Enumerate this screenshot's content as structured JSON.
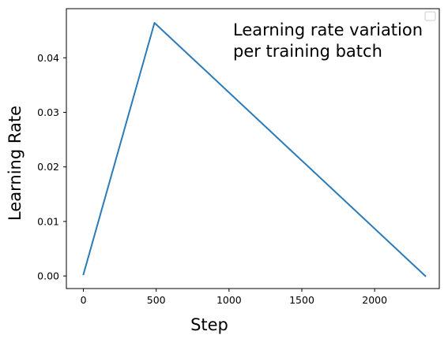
{
  "chart_data": {
    "type": "line",
    "title": "",
    "xlabel": "Step",
    "ylabel": "Learning Rate",
    "annotation": [
      "Learning rate variation",
      "per training batch"
    ],
    "xlim": [
      -117,
      2444
    ],
    "ylim": [
      -0.0023,
      0.049
    ],
    "xticks": [
      0,
      500,
      1000,
      1500,
      2000
    ],
    "yticks": [
      0.0,
      0.01,
      0.02,
      0.03,
      0.04
    ],
    "xtick_labels": [
      "0",
      "500",
      "1000",
      "1500",
      "2000"
    ],
    "ytick_labels": [
      "0.00",
      "0.01",
      "0.02",
      "0.03",
      "0.04"
    ],
    "grid": false,
    "legend": {
      "placement": "top-right",
      "entries": []
    },
    "series": [
      {
        "color": "#2b7bb9",
        "x": [
          0,
          488,
          2348
        ],
        "y": [
          0.0003,
          0.0464,
          0.0
        ]
      }
    ]
  }
}
